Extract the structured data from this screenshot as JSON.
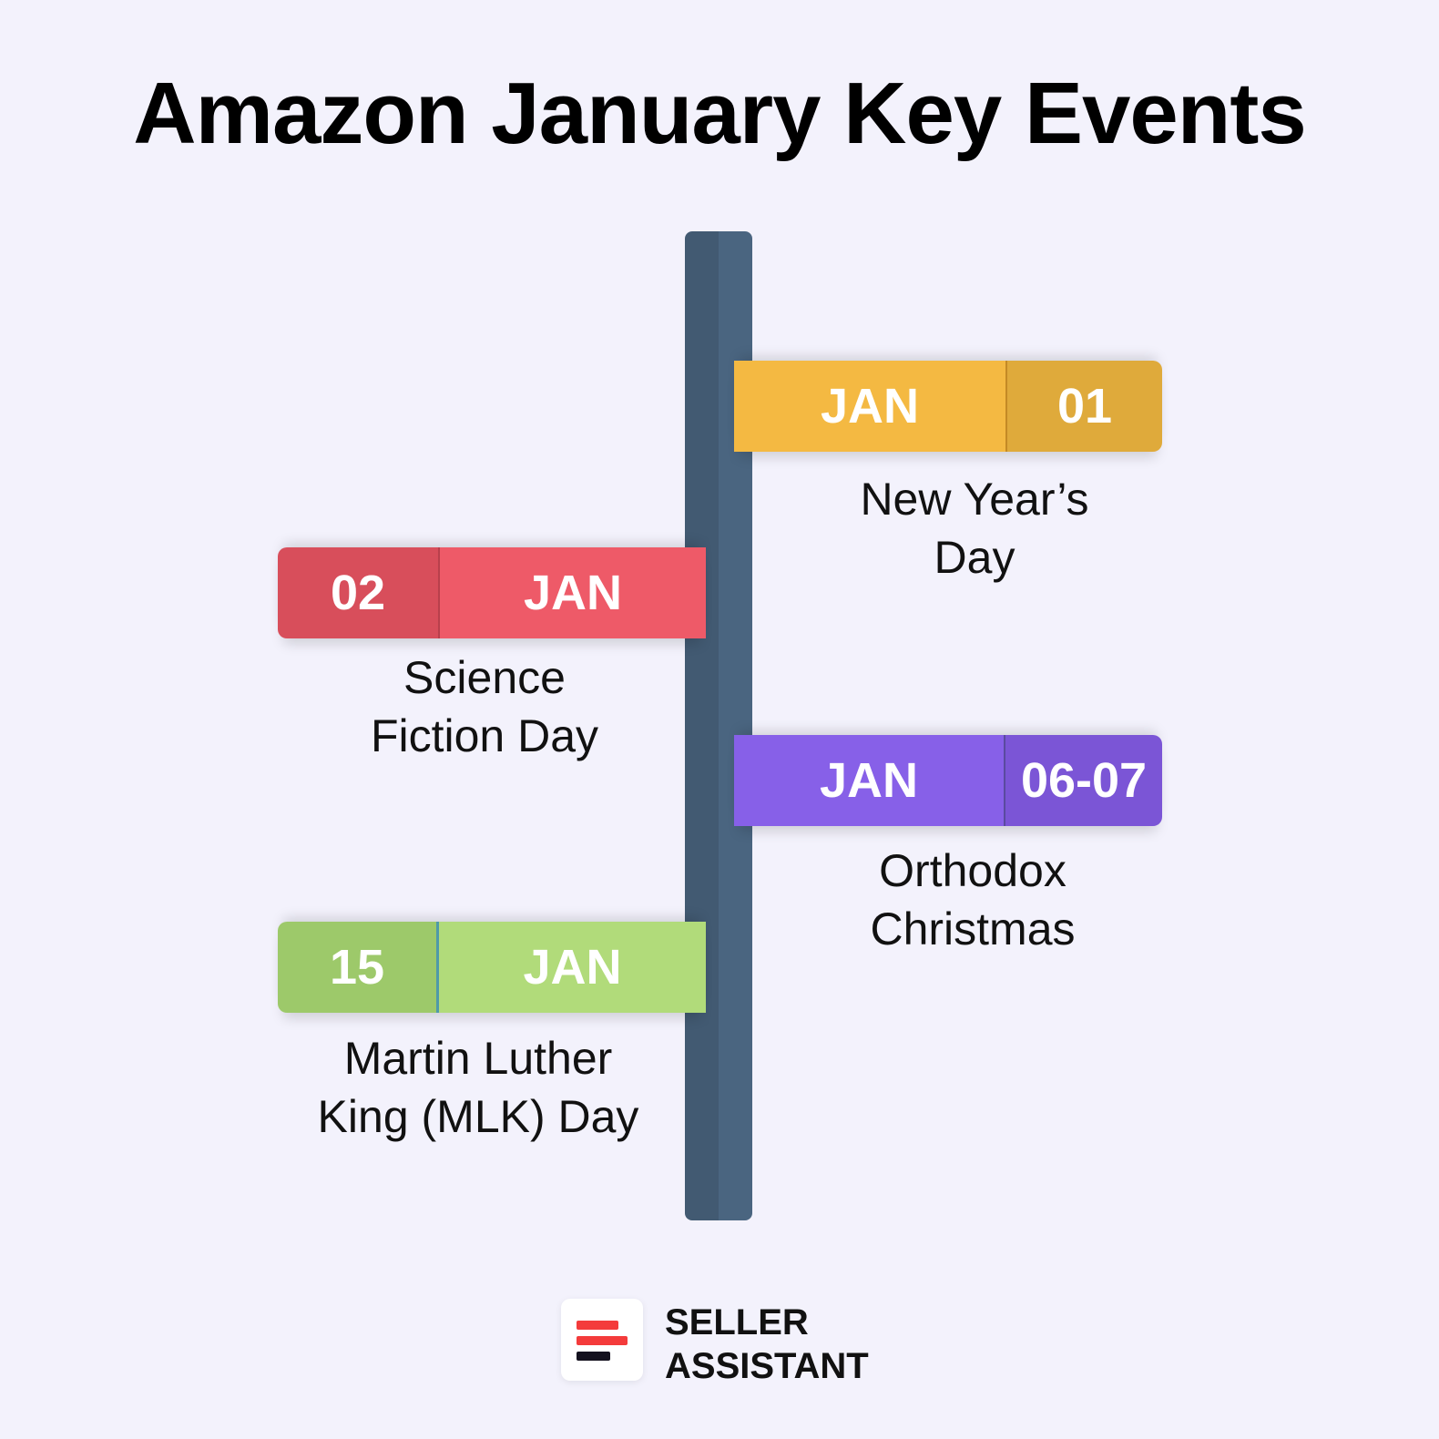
{
  "title": "Amazon January Key Events",
  "events": [
    {
      "month": "JAN",
      "day": "01",
      "name_line1": "New Year’s",
      "name_line2": "Day",
      "color": "#f4b942",
      "day_color": "#dfaa3b",
      "side": "right"
    },
    {
      "month": "JAN",
      "day": "02",
      "name_line1": "Science",
      "name_line2": "Fiction Day",
      "color": "#ee5a68",
      "day_color": "#d84e5b",
      "side": "left"
    },
    {
      "month": "JAN",
      "day": "06-07",
      "name_line1": "Orthodox",
      "name_line2": "Christmas",
      "color": "#8760e8",
      "day_color": "#7b55d6",
      "side": "right"
    },
    {
      "month": "JAN",
      "day": "15",
      "name_line1": "Martin Luther",
      "name_line2": "King (MLK) Day",
      "color": "#b1db7a",
      "day_color": "#9dc96a",
      "side": "left"
    }
  ],
  "brand": {
    "line1": "SELLER",
    "line2": "ASSISTANT",
    "logo_colors": [
      "#f43b3b",
      "#f43b3b",
      "#14121f"
    ]
  }
}
